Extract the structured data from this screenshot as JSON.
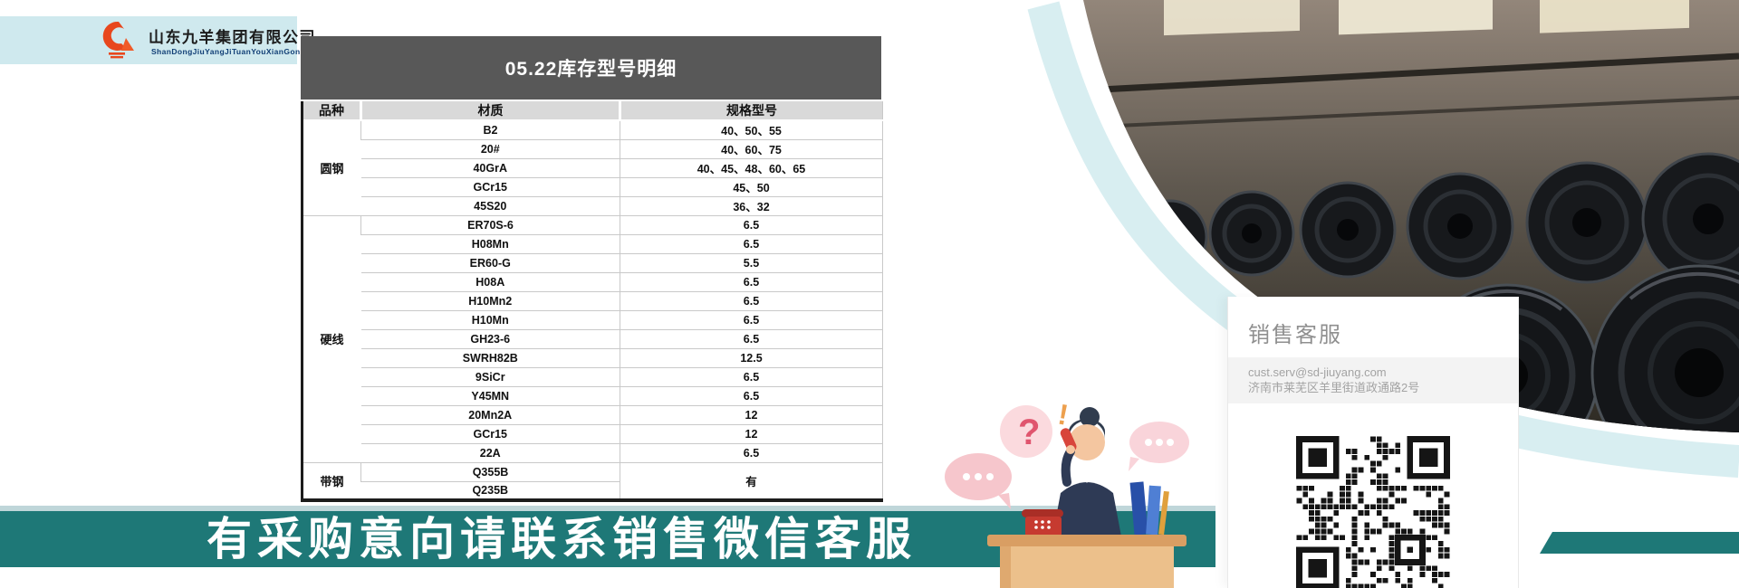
{
  "logo": {
    "company_name": "山东九羊集团有限公司",
    "company_pinyin": "ShanDongJiuYangJiTuanYouXianGongSi"
  },
  "inventory_table": {
    "title": "05.22库存型号明细",
    "columns": [
      "品种",
      "材质",
      "规格型号"
    ],
    "groups": [
      {
        "category": "圆钢",
        "rows": [
          {
            "material": "B2",
            "spec": "40、50、55"
          },
          {
            "material": "20#",
            "spec": "40、60、75"
          },
          {
            "material": "40GrA",
            "spec": "40、45、48、60、65"
          },
          {
            "material": "GCr15",
            "spec": "45、50"
          },
          {
            "material": "45S20",
            "spec": "36、32"
          }
        ]
      },
      {
        "category": "硬线",
        "rows": [
          {
            "material": "ER70S-6",
            "spec": "6.5"
          },
          {
            "material": "H08Mn",
            "spec": "6.5"
          },
          {
            "material": "ER60-G",
            "spec": "5.5"
          },
          {
            "material": "H08A",
            "spec": "6.5"
          },
          {
            "material": "H10Mn2",
            "spec": "6.5"
          },
          {
            "material": "H10Mn",
            "spec": "6.5"
          },
          {
            "material": "GH23-6",
            "spec": "6.5"
          },
          {
            "material": "SWRH82B",
            "spec": "12.5"
          },
          {
            "material": "9SiCr",
            "spec": "6.5"
          },
          {
            "material": "Y45MN",
            "spec": "6.5"
          },
          {
            "material": "20Mn2A",
            "spec": "12"
          },
          {
            "material": "GCr15",
            "spec": "12"
          },
          {
            "material": "22A",
            "spec": "6.5"
          }
        ]
      },
      {
        "category": "带钢",
        "merged_spec": "有",
        "rows": [
          {
            "material": "Q355B"
          },
          {
            "material": "Q235B"
          }
        ]
      }
    ]
  },
  "footer_banner": {
    "text": "有采购意向请联系销售微信客服"
  },
  "sales_card": {
    "heading": "销售客服",
    "email": "cust.serv@sd-jiuyang.com",
    "address": "济南市莱芜区羊里街道政通路2号",
    "qr_icon": "wechat-qr-code"
  },
  "colors": {
    "teal": "#1e7877",
    "light_blue": "#cfe9ee",
    "table_banner_gray": "#585858",
    "table_header_gray": "#d9d9d9",
    "logo_orange": "#e8471d"
  }
}
